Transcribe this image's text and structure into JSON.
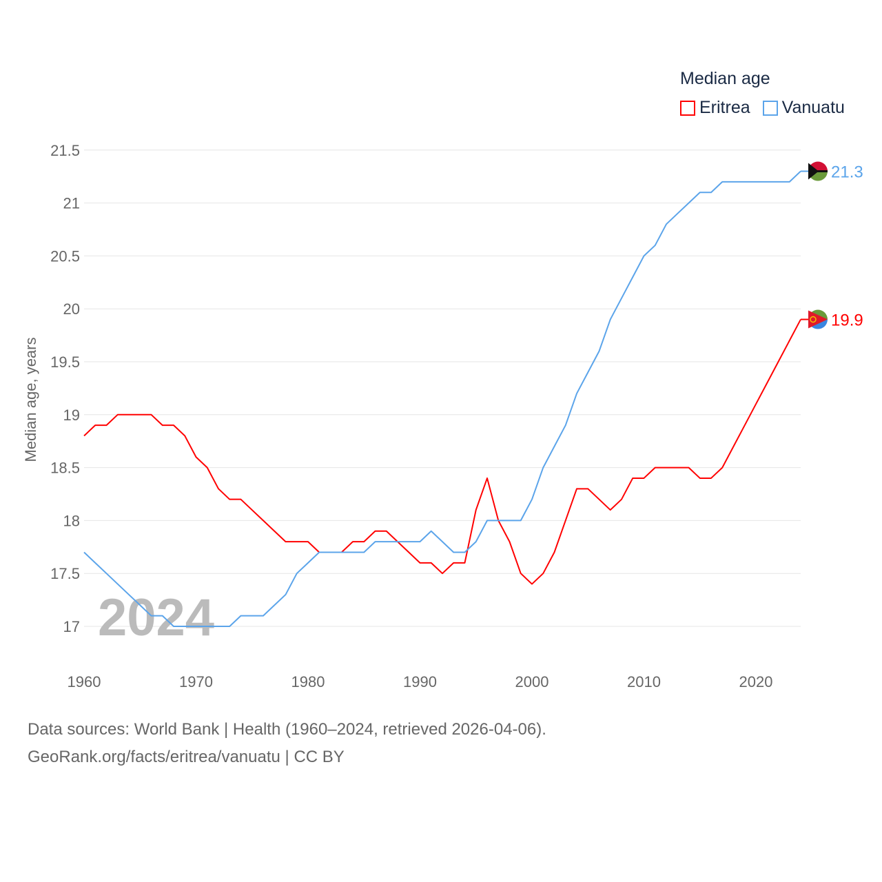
{
  "chart_data": {
    "type": "line",
    "title": "Median age",
    "xlabel": "",
    "ylabel": "Median age, years",
    "xlim": [
      1960,
      2024
    ],
    "ylim": [
      16.7,
      21.6
    ],
    "x_ticks": [
      1960,
      1970,
      1980,
      1990,
      2000,
      2010,
      2020
    ],
    "y_ticks": [
      17,
      17.5,
      18,
      18.5,
      19,
      19.5,
      20,
      20.5,
      21,
      21.5
    ],
    "y_tick_labels": [
      "17",
      "17.5",
      "18",
      "18.5",
      "19",
      "19.5",
      "20",
      "20.5",
      "21",
      "21.5"
    ],
    "grid": true,
    "legend_position": "top-right",
    "year_watermark": "2024",
    "series": [
      {
        "name": "Eritrea",
        "color": "#ff0000",
        "end_label": "19.9",
        "start_year": 1960,
        "values": [
          18.8,
          18.9,
          18.9,
          19.0,
          19.0,
          19.0,
          19.0,
          18.9,
          18.9,
          18.8,
          18.6,
          18.5,
          18.3,
          18.2,
          18.2,
          18.1,
          18.0,
          17.9,
          17.8,
          17.8,
          17.8,
          17.7,
          17.7,
          17.7,
          17.8,
          17.8,
          17.9,
          17.9,
          17.8,
          17.7,
          17.6,
          17.6,
          17.5,
          17.6,
          17.6,
          18.1,
          18.4,
          18.0,
          17.8,
          17.5,
          17.4,
          17.5,
          17.7,
          18.0,
          18.3,
          18.3,
          18.2,
          18.1,
          18.2,
          18.4,
          18.4,
          18.5,
          18.5,
          18.5,
          18.5,
          18.4,
          18.4,
          18.5,
          18.7,
          18.9,
          19.1,
          19.3,
          19.5,
          19.7,
          19.9
        ]
      },
      {
        "name": "Vanuatu",
        "color": "#5ba4ea",
        "end_label": "21.3",
        "start_year": 1960,
        "values": [
          17.7,
          17.6,
          17.5,
          17.4,
          17.3,
          17.2,
          17.1,
          17.1,
          17.0,
          17.0,
          17.0,
          17.0,
          17.0,
          17.0,
          17.1,
          17.1,
          17.1,
          17.2,
          17.3,
          17.5,
          17.6,
          17.7,
          17.7,
          17.7,
          17.7,
          17.7,
          17.8,
          17.8,
          17.8,
          17.8,
          17.8,
          17.9,
          17.8,
          17.7,
          17.7,
          17.8,
          18.0,
          18.0,
          18.0,
          18.0,
          18.2,
          18.5,
          18.7,
          18.9,
          19.2,
          19.4,
          19.6,
          19.9,
          20.1,
          20.3,
          20.5,
          20.6,
          20.8,
          20.9,
          21.0,
          21.1,
          21.1,
          21.2,
          21.2,
          21.2,
          21.2,
          21.2,
          21.2,
          21.2,
          21.3
        ]
      }
    ]
  },
  "footer": {
    "line1": "Data sources: World Bank | Health (1960–2024, retrieved 2026-04-06).",
    "line2": "GeoRank.org/facts/eritrea/vanuatu | CC BY"
  }
}
